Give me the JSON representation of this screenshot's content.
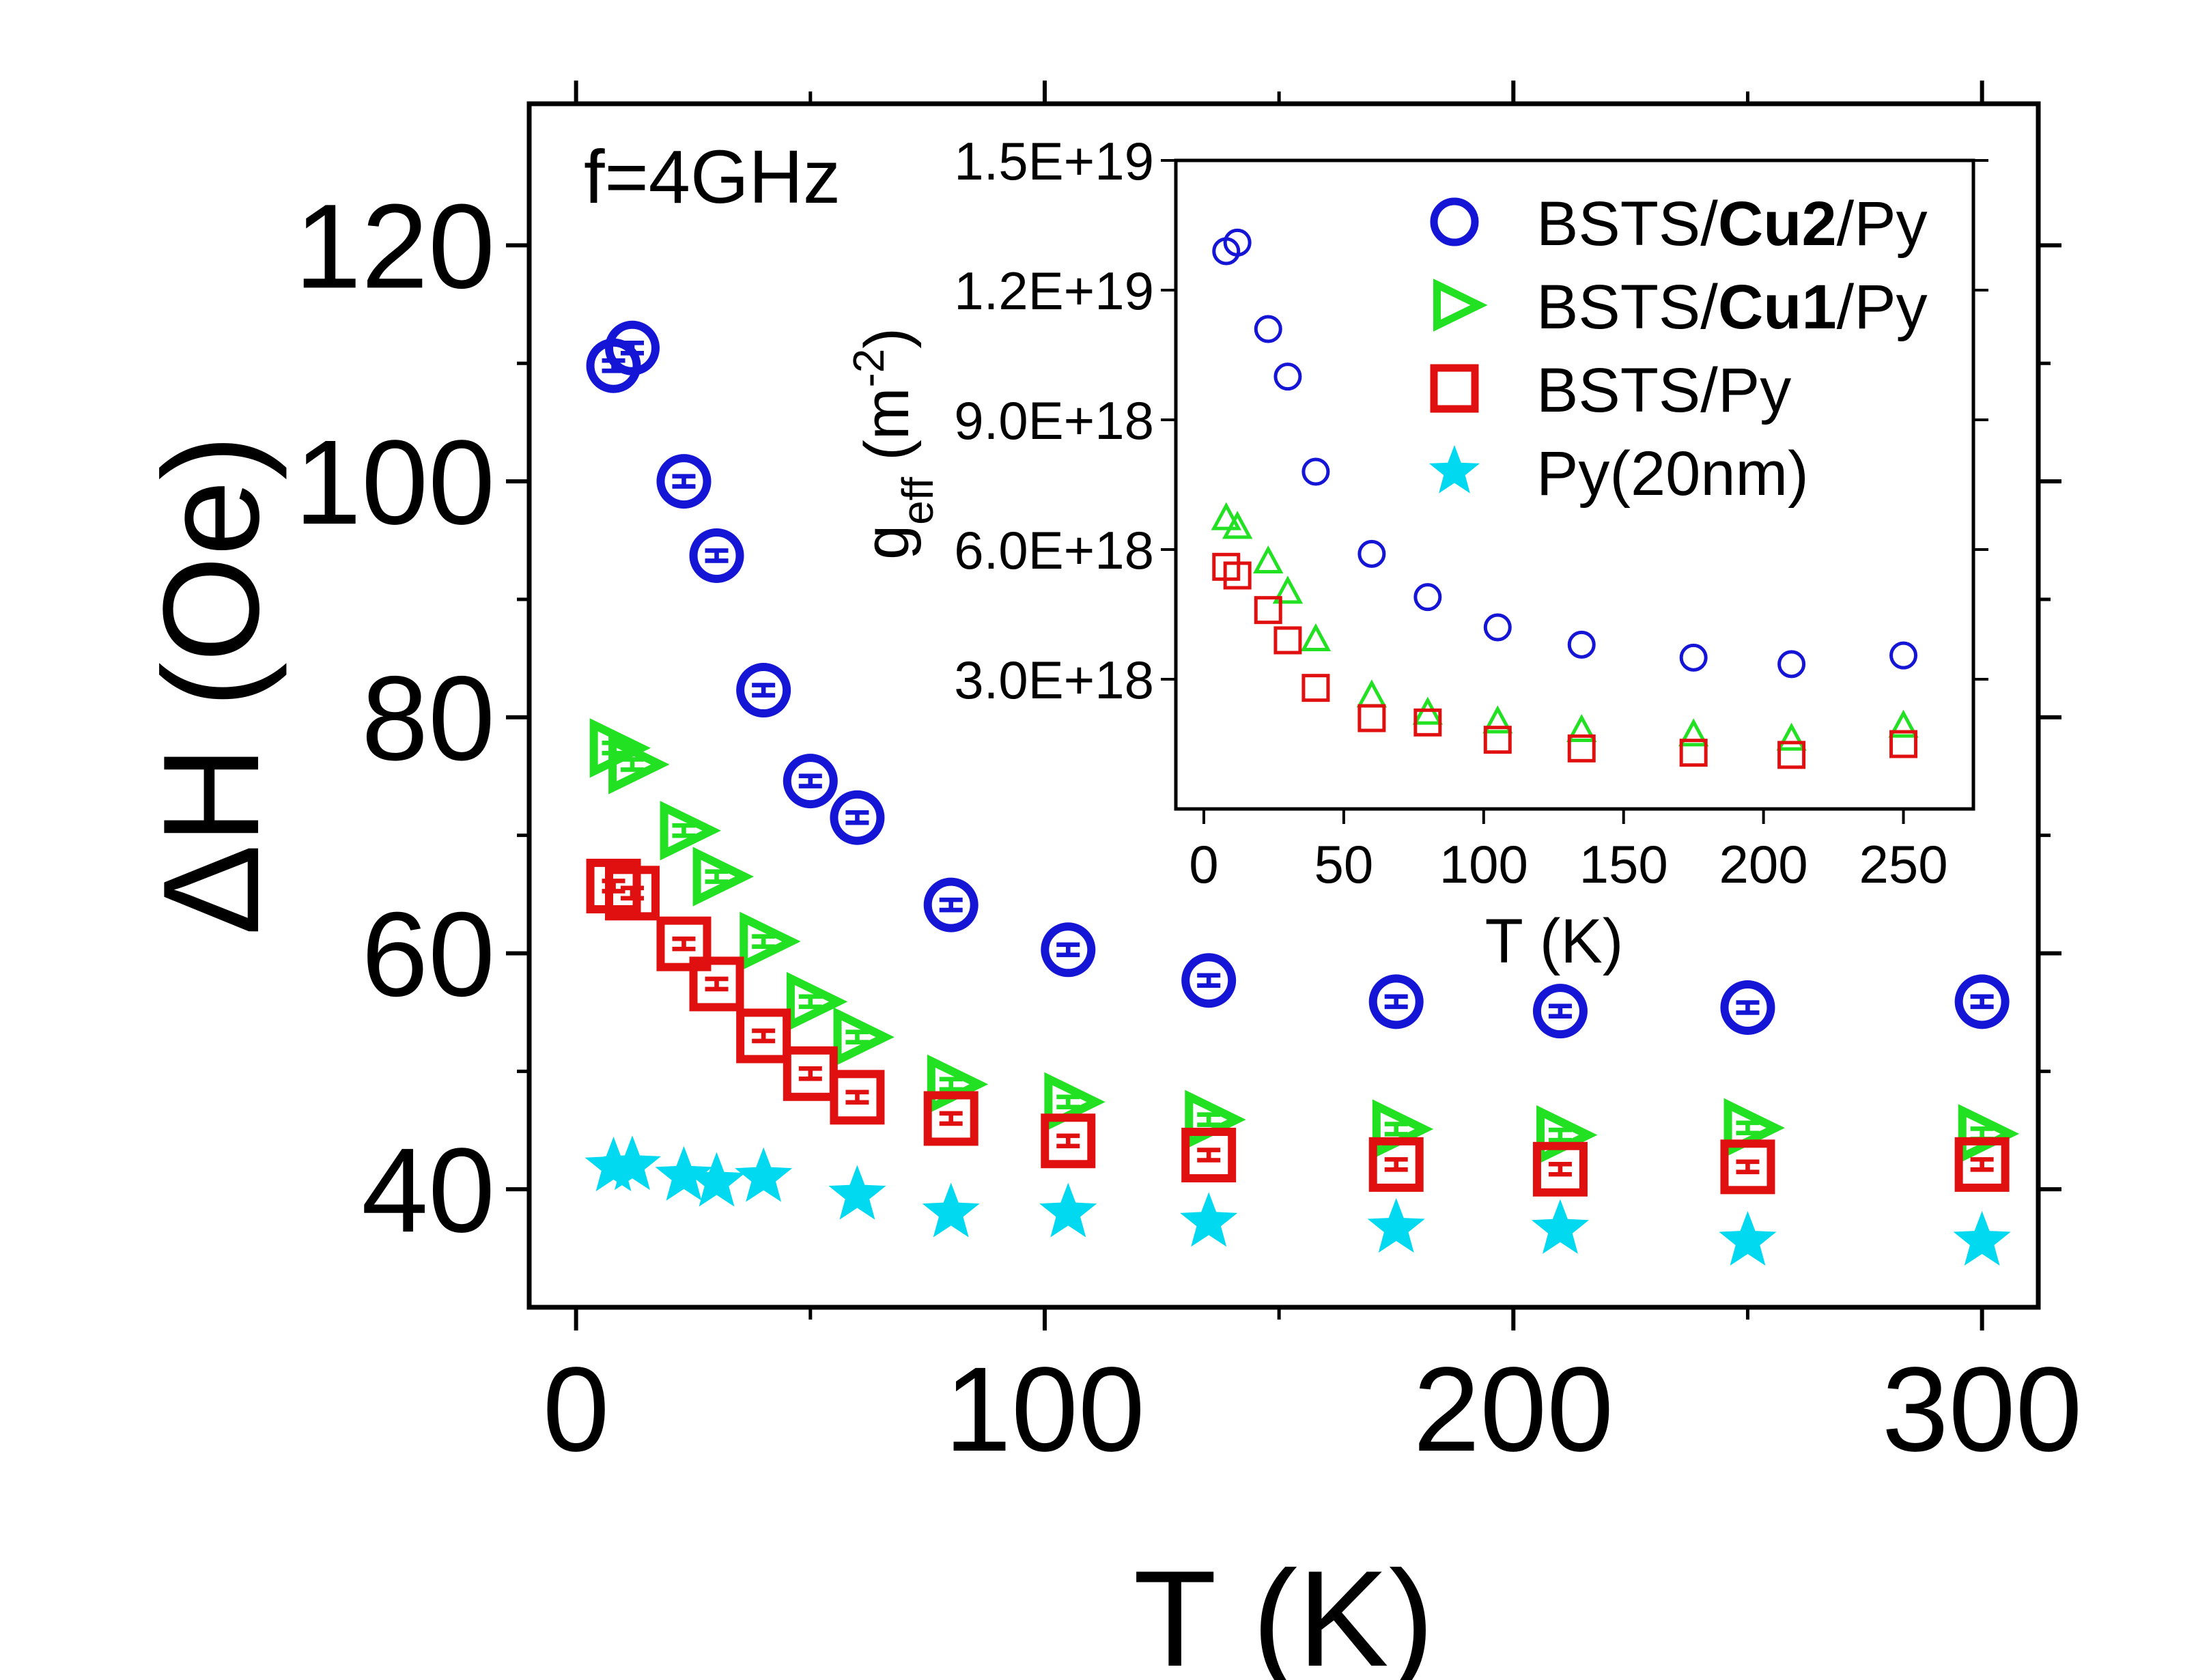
{
  "chart_data": [
    {
      "id": "main",
      "type": "scatter",
      "annotation": "f=4GHz",
      "xlabel": "T (K)",
      "ylabel": "ΔH (Oe)",
      "xlim": [
        -10,
        312
      ],
      "ylim": [
        30,
        132
      ],
      "xticks": [
        0,
        100,
        200,
        300
      ],
      "yticks": [
        40,
        60,
        80,
        100,
        120
      ],
      "xminor": [
        50,
        150,
        250
      ],
      "yminor": [
        50,
        70,
        90,
        110
      ],
      "grid": false,
      "series": [
        {
          "name": "BSTS/Cu2/Py",
          "marker": "circle",
          "color": "#1515d6",
          "has_error_bars": true,
          "x": [
            8,
            12,
            23,
            30,
            40,
            50,
            60,
            80,
            105,
            135,
            175,
            210,
            250,
            300
          ],
          "y": [
            109.8,
            111.3,
            100.0,
            93.7,
            82.3,
            74.6,
            71.5,
            64.1,
            60.3,
            57.7,
            55.9,
            55.1,
            55.4,
            55.9
          ]
        },
        {
          "name": "BSTS/Cu1/Py",
          "marker": "triangle-right",
          "color": "#22e022",
          "has_error_bars": true,
          "x": [
            8,
            12,
            23,
            30,
            40,
            50,
            60,
            80,
            105,
            135,
            175,
            210,
            250,
            300
          ],
          "y": [
            77.4,
            76.0,
            70.4,
            66.5,
            61.0,
            55.9,
            52.9,
            48.9,
            47.4,
            45.9,
            45.1,
            44.6,
            45.2,
            44.7
          ]
        },
        {
          "name": "BSTS/Py",
          "marker": "square",
          "color": "#e01010",
          "has_error_bars": true,
          "x": [
            8,
            12,
            23,
            30,
            40,
            50,
            60,
            80,
            105,
            135,
            175,
            210,
            250,
            300
          ],
          "y": [
            65.7,
            65.1,
            60.8,
            57.4,
            53.0,
            49.8,
            47.8,
            46.0,
            44.1,
            42.9,
            42.1,
            41.7,
            41.9,
            42.1
          ]
        },
        {
          "name": "Py(20nm)",
          "marker": "star",
          "color": "#00d9f0",
          "has_error_bars": false,
          "x": [
            8,
            12,
            23,
            30,
            40,
            60,
            80,
            105,
            135,
            175,
            210,
            250,
            300
          ],
          "y": [
            41.9,
            42.0,
            41.1,
            40.6,
            41.0,
            39.5,
            38.0,
            38.0,
            37.2,
            36.7,
            36.6,
            35.6,
            35.6
          ]
        }
      ]
    },
    {
      "id": "inset",
      "type": "scatter",
      "xlabel": "T (K)",
      "ylabel_main": "g",
      "ylabel_sub": "eff",
      "ylabel_unit_open": "(m",
      "ylabel_unit_exp": "-2",
      "ylabel_unit_close": ")",
      "xlim": [
        -10,
        275
      ],
      "ylim": [
        0,
        1.5e+19
      ],
      "xticks": [
        0,
        50,
        100,
        150,
        200,
        250
      ],
      "xtick_labels": [
        "0",
        "50",
        "100",
        "150",
        "200",
        "250"
      ],
      "yticks": [
        3e+18,
        6e+18,
        9e+18,
        1.2e+19,
        1.5e+19
      ],
      "ytick_labels": [
        "3.0E+18",
        "6.0E+18",
        "9.0E+18",
        "1.2E+19",
        "1.5E+19"
      ],
      "grid": false,
      "series": [
        {
          "name": "BSTS/Cu2/Py",
          "marker": "circle",
          "color": "#1515d6",
          "x": [
            8,
            12,
            23,
            30,
            40,
            60,
            80,
            105,
            135,
            175,
            210,
            250
          ],
          "y": [
            1.29e+19,
            1.31e+19,
            1.11e+19,
            1e+19,
            7.8e+18,
            5.9e+18,
            4.9e+18,
            4.2e+18,
            3.8e+18,
            3.5e+18,
            3.35e+18,
            3.55e+18
          ]
        },
        {
          "name": "BSTS/Cu1/Py",
          "marker": "triangle-up",
          "color": "#22e022",
          "x": [
            8,
            12,
            23,
            30,
            40,
            60,
            80,
            105,
            135,
            175,
            210,
            250
          ],
          "y": [
            6.7e+18,
            6.5e+18,
            5.7e+18,
            5e+18,
            3.9e+18,
            2.6e+18,
            2.2e+18,
            2e+18,
            1.8e+18,
            1.7e+18,
            1.6e+18,
            1.9e+18
          ]
        },
        {
          "name": "BSTS/Py",
          "marker": "square",
          "color": "#e01010",
          "x": [
            8,
            12,
            23,
            30,
            40,
            60,
            80,
            105,
            135,
            175,
            210,
            250
          ],
          "y": [
            5.6e+18,
            5.4e+18,
            4.6e+18,
            3.9e+18,
            2.8e+18,
            2.1e+18,
            2e+18,
            1.6e+18,
            1.4e+18,
            1.3e+18,
            1.25e+18,
            1.5e+18
          ]
        }
      ]
    }
  ],
  "legend": {
    "placement": "top-right",
    "entries": [
      {
        "prefix": "BSTS/",
        "bold": "Cu2",
        "suffix": "/Py",
        "marker": "circle",
        "color": "#1515d6"
      },
      {
        "prefix": "BSTS/",
        "bold": "Cu1",
        "suffix": "/Py",
        "marker": "triangle-right",
        "color": "#22e022"
      },
      {
        "prefix": "BSTS/Py",
        "bold": "",
        "suffix": "",
        "marker": "square",
        "color": "#e01010"
      },
      {
        "prefix": "Py(20nm)",
        "bold": "",
        "suffix": "",
        "marker": "star",
        "color": "#00d9f0"
      }
    ]
  }
}
